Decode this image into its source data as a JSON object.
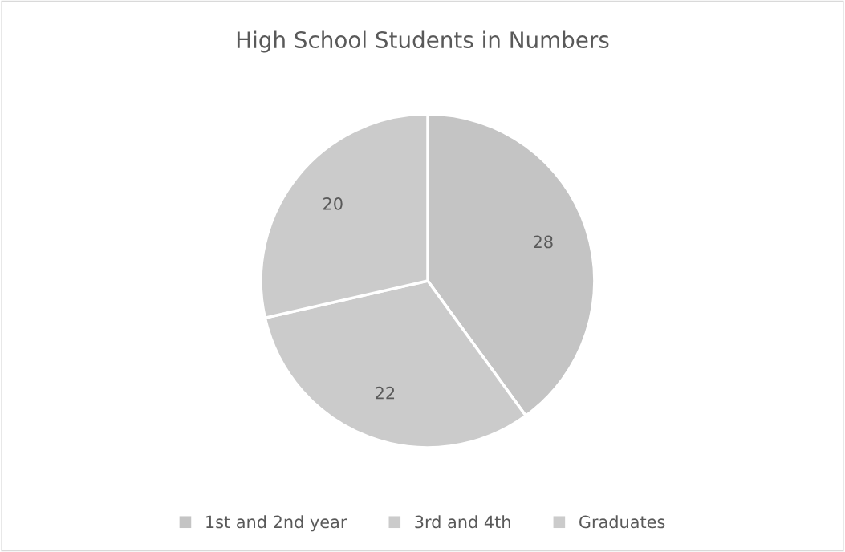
{
  "chart_data": {
    "type": "pie",
    "title": "High School Students in Numbers",
    "categories": [
      "1st and 2nd year",
      "3rd and 4th",
      "Graduates"
    ],
    "values": [
      28,
      22,
      20
    ],
    "colors": [
      "#c4c4c4",
      "#cbcbcb",
      "#cbcbcb"
    ],
    "data_labels": true,
    "legend": "bottom"
  }
}
